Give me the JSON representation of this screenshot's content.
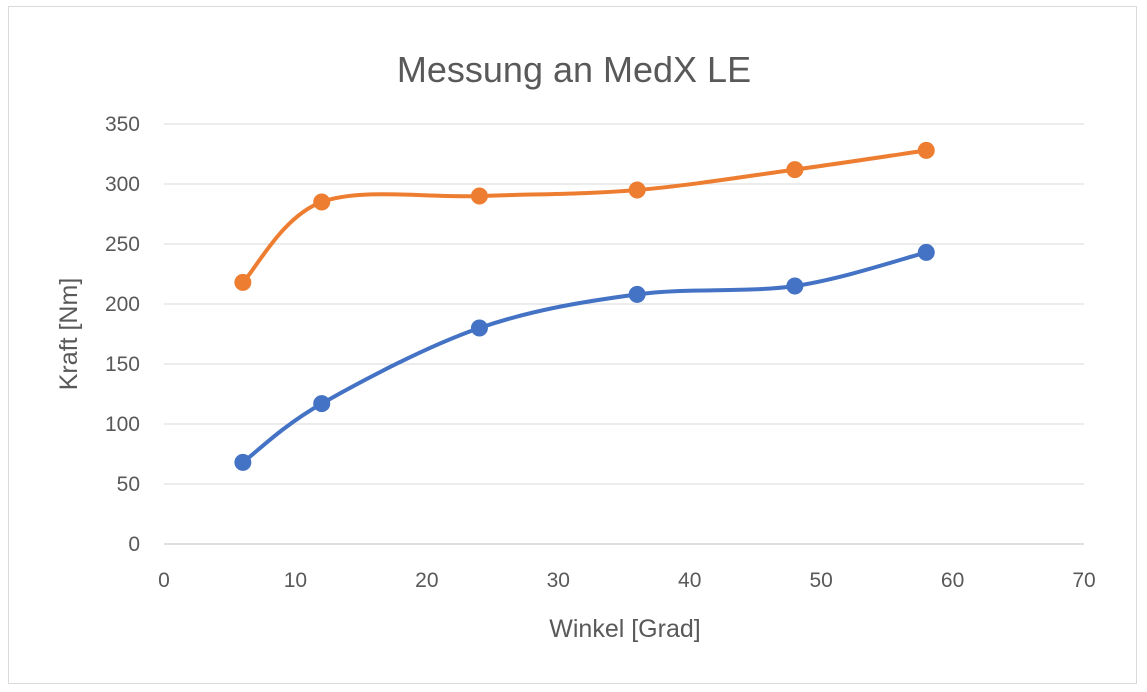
{
  "chart_data": {
    "type": "line",
    "smooth": true,
    "markers": "circle",
    "title": "Messung an MedX LE",
    "xlabel": "Winkel [Grad]",
    "ylabel": "Kraft [Nm]",
    "xlim": [
      0,
      70
    ],
    "ylim": [
      0,
      350
    ],
    "xticks": [
      0,
      10,
      20,
      30,
      40,
      50,
      60,
      70
    ],
    "yticks": [
      0,
      50,
      100,
      150,
      200,
      250,
      300,
      350
    ],
    "grid": "horizontal",
    "legend": "none",
    "x": [
      6,
      12,
      24,
      36,
      48,
      58
    ],
    "series": [
      {
        "color": "#ed7d31",
        "values": [
          218,
          285,
          290,
          295,
          312,
          328
        ]
      },
      {
        "color": "#4472c4",
        "values": [
          68,
          117,
          180,
          208,
          215,
          243
        ]
      }
    ]
  }
}
